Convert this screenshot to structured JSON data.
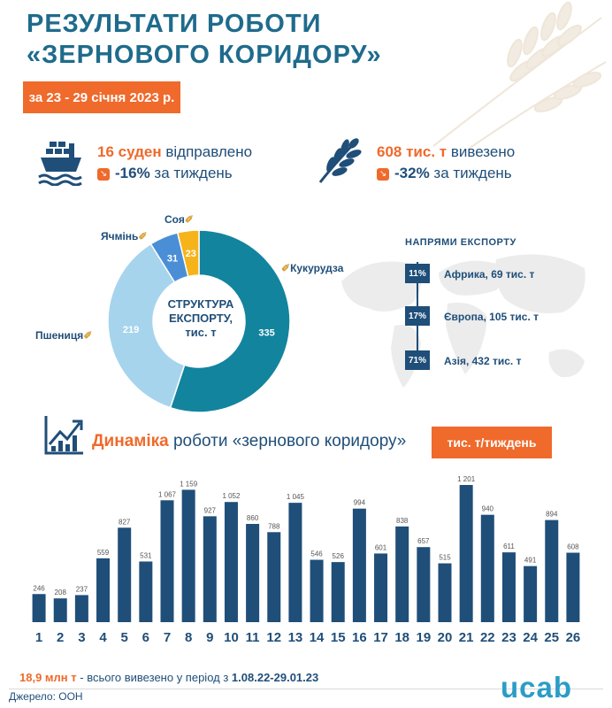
{
  "title_line1": "РЕЗУЛЬТАТИ РОБОТИ",
  "title_line2": "«ЗЕРНОВОГО КОРИДОРУ»",
  "period": "за 23 - 29 січня 2023 р.",
  "ships": {
    "value": "16 суден",
    "text": "відправлено",
    "change": "-16%",
    "change_text": "за тиждень"
  },
  "volume": {
    "value": "608 тис. т",
    "text": "вивезено",
    "change": "-32%",
    "change_text": "за тиждень"
  },
  "colors": {
    "orange": "#ef6a2b",
    "navy": "#1f4e79",
    "teal": "#12849e",
    "light_blue": "#a7d4ed",
    "mid_blue": "#4a8fd6",
    "yellow": "#f6b31a"
  },
  "icons": [
    "ship-icon",
    "wheat-icon",
    "corn-icon",
    "barley-icon",
    "soy-icon",
    "growth-chart-icon",
    "world-map"
  ],
  "donut_center": [
    "СТРУКТУРА",
    "ЕКСПОРТУ,",
    "тис. т"
  ],
  "directions": {
    "title": "НАПРЯМИ ЕКСПОРТУ",
    "items": [
      {
        "percent": "11%",
        "label": "Африка, 69 тис. т"
      },
      {
        "percent": "17%",
        "label": "Європа, 105 тис. т"
      },
      {
        "percent": "71%",
        "label": "Азія, 432 тис. т"
      }
    ]
  },
  "dynamics": {
    "title_bold": "Динаміка",
    "title_rest": "роботи «зернового коридору»",
    "unit": "тис. т/тиждень"
  },
  "bottom": {
    "total_value": "18,9 млн т",
    "total_text": "- всього вивезено у період з",
    "period_range": "1.08.22-29.01.23",
    "source": "Джерело: ООН",
    "logo": "ucab"
  },
  "chart_data": [
    {
      "type": "pie",
      "title": "СТРУКТУРА ЕКСПОРТУ, тис. т",
      "categories": [
        "Кукурудза",
        "Пшениця",
        "Ячмінь",
        "Соя"
      ],
      "values": [
        335,
        219,
        31,
        23
      ],
      "colors": [
        "#12849e",
        "#a7d4ed",
        "#4a8fd6",
        "#f6b31a"
      ]
    },
    {
      "type": "bar",
      "title": "Динаміка роботи «зернового коридору»",
      "ylabel": "тис. т/тиждень",
      "categories": [
        "1",
        "2",
        "3",
        "4",
        "5",
        "6",
        "7",
        "8",
        "9",
        "10",
        "11",
        "12",
        "13",
        "14",
        "15",
        "16",
        "17",
        "18",
        "19",
        "20",
        "21",
        "22",
        "23",
        "24",
        "25",
        "26"
      ],
      "values": [
        246,
        208,
        237,
        559,
        827,
        531,
        1067,
        1159,
        927,
        1052,
        860,
        788,
        1045,
        546,
        526,
        994,
        601,
        838,
        657,
        515,
        1201,
        940,
        611,
        491,
        894,
        608
      ],
      "value_labels": [
        "246",
        "208",
        "237",
        "559",
        "827",
        "531",
        "1 067",
        "1 159",
        "927",
        "1 052",
        "860",
        "788",
        "1 045",
        "546",
        "526",
        "994",
        "601",
        "838",
        "657",
        "515",
        "1 201",
        "940",
        "611",
        "491",
        "894",
        "608"
      ],
      "ylim": [
        0,
        1201
      ],
      "grid": false,
      "color": "#1f4e79"
    }
  ]
}
